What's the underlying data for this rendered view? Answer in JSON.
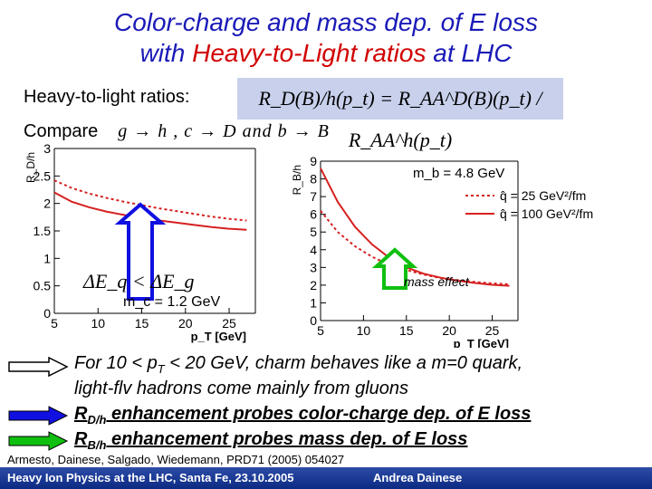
{
  "title": {
    "line1": "Color-charge and mass dep. of E loss",
    "line2_pre": "with ",
    "line2_red": "Heavy-to-Light ratios",
    "line2_post": " at LHC"
  },
  "ratios_label": "Heavy-to-light ratios:",
  "formula": "R_D(B)/h(p_t) = R_AA^D(B)(p_t) / R_AA^h(p_t)",
  "compare": {
    "label": "Compare",
    "math": "g → h ,  c → D  and  b → B"
  },
  "chart_data": [
    {
      "type": "line",
      "ylabel": "R_D/h",
      "xlabel": "p_T [GeV]",
      "xlim": [
        5,
        28
      ],
      "ylim": [
        0,
        3
      ],
      "xticks": [
        5,
        10,
        15,
        20,
        25
      ],
      "yticks": [
        0,
        0.5,
        1,
        1.5,
        2,
        2.5,
        3
      ],
      "xtick_labels": [
        "5",
        "10",
        "15",
        "20",
        "25"
      ],
      "ytick_labels": [
        "0",
        "0.5",
        "1",
        "1.5",
        "2",
        "2.5",
        "3"
      ],
      "annotation_mass": "m_c = 1.2 GeV",
      "annotation_formula": "ΔE_q < ΔE_g",
      "series": [
        {
          "name": "q̂ = 25 GeV²/fm",
          "style": "dotted",
          "color": "#d62020",
          "x": [
            5,
            7,
            9,
            11,
            13,
            15,
            17,
            19,
            21,
            23,
            25,
            27
          ],
          "y": [
            2.42,
            2.28,
            2.18,
            2.1,
            2.03,
            1.97,
            1.91,
            1.86,
            1.81,
            1.76,
            1.72,
            1.69
          ]
        },
        {
          "name": "q̂ = 100 GeV²/fm",
          "style": "solid",
          "color": "#d62020",
          "x": [
            5,
            7,
            9,
            11,
            13,
            15,
            17,
            19,
            21,
            23,
            25,
            27
          ],
          "y": [
            2.2,
            2.03,
            1.93,
            1.85,
            1.79,
            1.74,
            1.69,
            1.65,
            1.61,
            1.57,
            1.54,
            1.52
          ]
        }
      ]
    },
    {
      "type": "line",
      "ylabel": "R_B/h",
      "xlabel": "p_T [GeV]",
      "xlim": [
        5,
        28
      ],
      "ylim": [
        0,
        9
      ],
      "xticks": [
        5,
        10,
        15,
        20,
        25
      ],
      "yticks": [
        0,
        1,
        2,
        3,
        4,
        5,
        6,
        7,
        8,
        9
      ],
      "xtick_labels": [
        "5",
        "10",
        "15",
        "20",
        "25"
      ],
      "ytick_labels": [
        "0",
        "1",
        "2",
        "3",
        "4",
        "5",
        "6",
        "7",
        "8",
        "9"
      ],
      "annotation_mass": "m_b = 4.8 GeV",
      "annotation_effect": "mass effect",
      "legend": [
        "q̂ = 25 GeV²/fm",
        "q̂ = 100 GeV²/fm"
      ],
      "series": [
        {
          "name": "q̂ = 25 GeV²/fm",
          "style": "dotted",
          "color": "#d62020",
          "x": [
            5,
            7,
            9,
            11,
            13,
            15,
            17,
            19,
            21,
            23,
            25,
            27
          ],
          "y": [
            6.2,
            5.0,
            4.2,
            3.6,
            3.15,
            2.85,
            2.6,
            2.4,
            2.28,
            2.18,
            2.1,
            2.05
          ]
        },
        {
          "name": "q̂ = 100 GeV²/fm",
          "style": "solid",
          "color": "#d62020",
          "x": [
            5,
            7,
            9,
            11,
            13,
            15,
            17,
            19,
            21,
            23,
            25,
            27
          ],
          "y": [
            8.6,
            6.7,
            5.3,
            4.3,
            3.55,
            3.0,
            2.65,
            2.42,
            2.25,
            2.12,
            2.02,
            1.96
          ]
        }
      ]
    }
  ],
  "bullets": {
    "b1_line1": "For 10 < p",
    "b1_sub": "T",
    "b1_line1_rest": " < 20 GeV, charm behaves like a m=0 quark,",
    "b1_line2": "light-flv hadrons come mainly from gluons",
    "b2_main": "R",
    "b2_sub": "D/h",
    "b2_rest": " enhancement probes color-charge dep. of E loss",
    "b3_main": "R",
    "b3_sub": "B/h",
    "b3_rest": " enhancement probes mass dep. of E loss"
  },
  "colors": {
    "title": "#1a1ab8",
    "accent_red": "#d10000",
    "blue_arrow": "#1010e0",
    "green_arrow": "#10c010",
    "footer": "#163a9a"
  },
  "reference": "Armesto, Dainese, Salgado, Wiedemann, PRD71 (2005) 054027",
  "footer": {
    "left": "Heavy Ion Physics at the LHC, Santa Fe, 23.10.2005",
    "right": "Andrea Dainese"
  }
}
